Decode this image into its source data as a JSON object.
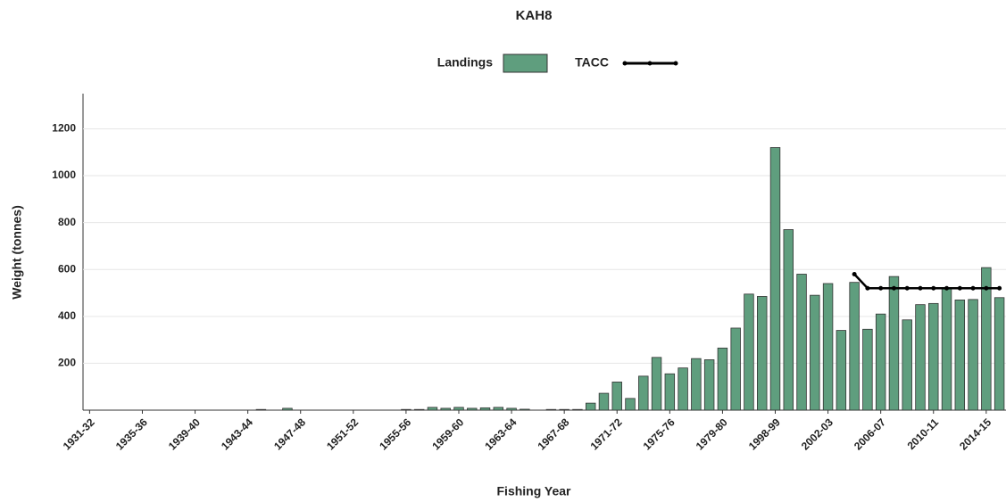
{
  "chart_data": {
    "type": "bar",
    "title": "KAH8",
    "x_label": "Fishing Year",
    "y_label": "Weight (tonnes)",
    "categories": [
      "1931-32",
      null,
      null,
      null,
      "1935-36",
      null,
      null,
      null,
      "1939-40",
      null,
      null,
      null,
      "1943-44",
      null,
      null,
      null,
      "1947-48",
      null,
      null,
      null,
      "1951-52",
      null,
      null,
      null,
      "1955-56",
      null,
      null,
      null,
      "1959-60",
      null,
      null,
      null,
      "1963-64",
      null,
      null,
      null,
      "1967-68",
      null,
      null,
      null,
      "1971-72",
      null,
      null,
      null,
      "1975-76",
      null,
      null,
      null,
      "1979-80",
      null,
      null,
      null,
      "1998-99",
      null,
      null,
      null,
      "2002-03",
      null,
      null,
      null,
      "2006-07",
      null,
      null,
      null,
      "2010-11",
      null,
      null,
      null,
      "2014-15",
      null
    ],
    "series": [
      {
        "name": "Landings",
        "type": "bar",
        "color": "#5f9e7e",
        "values": [
          0,
          0,
          0,
          0,
          0,
          0,
          0,
          0,
          0,
          0,
          0,
          0,
          0,
          3,
          0,
          8,
          0,
          0,
          0,
          0,
          0,
          0,
          0,
          0,
          3,
          3,
          12,
          8,
          12,
          8,
          10,
          12,
          8,
          4,
          0,
          3,
          3,
          3,
          30,
          72,
          120,
          50,
          145,
          225,
          155,
          180,
          220,
          215,
          265,
          350,
          495,
          485,
          1120,
          770,
          580,
          490,
          540,
          340,
          545,
          345,
          410,
          570,
          385,
          450,
          455,
          520,
          470,
          472,
          608,
          480
        ]
      },
      {
        "name": "TACC",
        "type": "line",
        "color": "#000000",
        "values": [
          null,
          null,
          null,
          null,
          null,
          null,
          null,
          null,
          null,
          null,
          null,
          null,
          null,
          null,
          null,
          null,
          null,
          null,
          null,
          null,
          null,
          null,
          null,
          null,
          null,
          null,
          null,
          null,
          null,
          null,
          null,
          null,
          null,
          null,
          null,
          null,
          null,
          null,
          null,
          null,
          null,
          null,
          null,
          null,
          null,
          null,
          null,
          null,
          null,
          null,
          null,
          null,
          null,
          null,
          null,
          null,
          null,
          null,
          580,
          520,
          520,
          520,
          520,
          520,
          520,
          520,
          520,
          520,
          520,
          520
        ]
      }
    ],
    "ylim": [
      0,
      1350
    ],
    "yticks": [
      200,
      400,
      600,
      800,
      1000,
      1200
    ],
    "grid": true
  }
}
